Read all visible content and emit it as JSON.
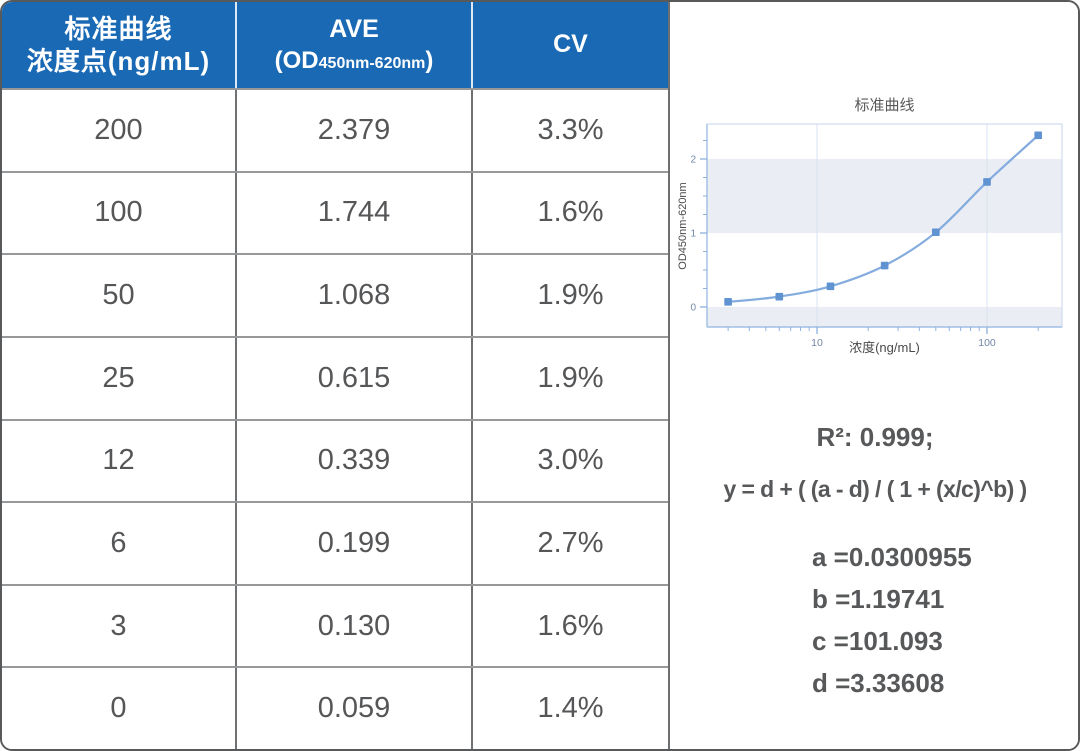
{
  "table": {
    "header": {
      "col1_line1": "标准曲线",
      "col1_line2": "浓度点(ng/mL)",
      "col2_line1": "AVE",
      "col2_od_prefix": "(OD",
      "col2_od_sub": "450nm-620nm",
      "col2_od_suffix": ")",
      "col3": "CV"
    },
    "rows": [
      {
        "conc": "200",
        "ave": "2.379",
        "cv": "3.3%"
      },
      {
        "conc": "100",
        "ave": "1.744",
        "cv": "1.6%"
      },
      {
        "conc": "50",
        "ave": "1.068",
        "cv": "1.9%"
      },
      {
        "conc": "25",
        "ave": "0.615",
        "cv": "1.9%"
      },
      {
        "conc": "12",
        "ave": "0.339",
        "cv": "3.0%"
      },
      {
        "conc": "6",
        "ave": "0.199",
        "cv": "2.7%"
      },
      {
        "conc": "3",
        "ave": "0.130",
        "cv": "1.6%"
      },
      {
        "conc": "0",
        "ave": "0.059",
        "cv": "1.4%"
      }
    ]
  },
  "chart_data": {
    "type": "line",
    "title": "标准曲线",
    "xlabel": "浓度(ng/mL)",
    "ylabel": "OD450nm-620nm",
    "x_scale": "log",
    "x": [
      3,
      6,
      12,
      25,
      50,
      100,
      200
    ],
    "y": [
      0.07,
      0.14,
      0.28,
      0.56,
      1.01,
      1.69,
      2.32
    ],
    "x_ticks": [
      10,
      100
    ],
    "y_ticks": [
      0,
      1,
      2
    ],
    "xlim": [
      2.25,
      269
    ],
    "ylim": [
      -0.27,
      2.47
    ],
    "bands": [
      [
        1,
        2
      ],
      [
        -0.27,
        0
      ]
    ],
    "grid_x": [
      10,
      100
    ],
    "marker": "square",
    "legend": "none",
    "line_color": "#84ACDE",
    "marker_color": "#5F93D2",
    "band_fill": "#EAEDF4",
    "plot_border_color": "#C6D6EC",
    "axis_color": "#9FBFE4",
    "tick_color": "#8FB2DD",
    "tick_label_color": "#7287A7",
    "title_color": "#595959",
    "axis_label_color": "#4A4A4A"
  },
  "fit": {
    "r2": "R²: 0.999;",
    "equation": "y = d + ( (a - d) / ( 1 + (x/c)^b) )",
    "params": [
      "a =0.0300955",
      "b =1.19741",
      "c =101.093",
      "d =3.33608"
    ]
  },
  "colors": {
    "header_bg": "#1A69B4",
    "header_text": "#FFFFFF",
    "cell_text": "#555658",
    "border_outer": "#58595B",
    "formula_text": "#57585A"
  }
}
